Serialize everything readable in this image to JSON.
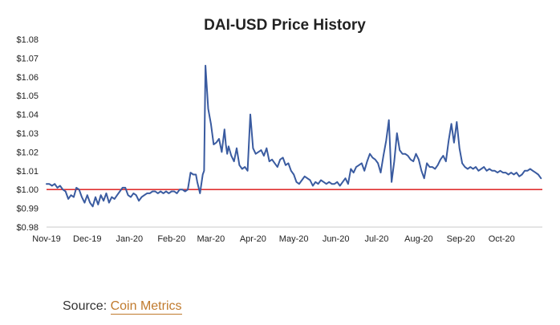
{
  "source": {
    "label": "Source: ",
    "link_text": "Coin Metrics"
  },
  "colors": {
    "series": "#3a5ba0",
    "reference": "#e03131",
    "axis": "#c8c8c8",
    "text": "#222222",
    "link": "#c07a2d"
  },
  "chart_data": {
    "type": "line",
    "title": "DAI-USD Price History",
    "xlabel": "",
    "ylabel": "",
    "ylim": [
      0.98,
      1.08
    ],
    "yticks": [
      0.98,
      0.99,
      1.0,
      1.01,
      1.02,
      1.03,
      1.04,
      1.05,
      1.06,
      1.07,
      1.08
    ],
    "ytick_labels": [
      "$0.98",
      "$0.99",
      "$1.00",
      "$1.01",
      "$1.02",
      "$1.03",
      "$1.04",
      "$1.05",
      "$1.06",
      "$1.07",
      "$1.08"
    ],
    "xlim": [
      "2019-11-01",
      "2020-10-31"
    ],
    "xticks": [
      "2019-11-01",
      "2019-12-01",
      "2020-01-01",
      "2020-02-01",
      "2020-03-01",
      "2020-04-01",
      "2020-05-01",
      "2020-06-01",
      "2020-07-01",
      "2020-08-01",
      "2020-09-01",
      "2020-10-01"
    ],
    "xtick_labels": [
      "Nov-19",
      "Dec-19",
      "Jan-20",
      "Feb-20",
      "Mar-20",
      "Apr-20",
      "May-20",
      "Jun-20",
      "Jul-20",
      "Aug-20",
      "Sep-20",
      "Oct-20"
    ],
    "grid": false,
    "legend": "none",
    "reference_line": {
      "y": 1.0
    },
    "series": [
      {
        "x": [
          "2019-11-01",
          "2019-11-03",
          "2019-11-05",
          "2019-11-07",
          "2019-11-09",
          "2019-11-11",
          "2019-11-13",
          "2019-11-15",
          "2019-11-17",
          "2019-11-19",
          "2019-11-21",
          "2019-11-23",
          "2019-11-25",
          "2019-11-27",
          "2019-11-29",
          "2019-12-01",
          "2019-12-03",
          "2019-12-05",
          "2019-12-07",
          "2019-12-09",
          "2019-12-11",
          "2019-12-13",
          "2019-12-15",
          "2019-12-17",
          "2019-12-19",
          "2019-12-21",
          "2019-12-23",
          "2019-12-25",
          "2019-12-27",
          "2019-12-29",
          "2019-12-31",
          "2020-01-02",
          "2020-01-04",
          "2020-01-06",
          "2020-01-08",
          "2020-01-10",
          "2020-01-12",
          "2020-01-14",
          "2020-01-16",
          "2020-01-18",
          "2020-01-20",
          "2020-01-22",
          "2020-01-24",
          "2020-01-26",
          "2020-01-28",
          "2020-01-30",
          "2020-02-01",
          "2020-02-03",
          "2020-02-05",
          "2020-02-07",
          "2020-02-09",
          "2020-02-11",
          "2020-02-13",
          "2020-02-15",
          "2020-02-17",
          "2020-02-19",
          "2020-02-20",
          "2020-02-21",
          "2020-02-22",
          "2020-02-23",
          "2020-02-24",
          "2020-02-25",
          "2020-02-26",
          "2020-02-28",
          "2020-03-01",
          "2020-03-03",
          "2020-03-05",
          "2020-03-07",
          "2020-03-09",
          "2020-03-11",
          "2020-03-12",
          "2020-03-13",
          "2020-03-14",
          "2020-03-16",
          "2020-03-18",
          "2020-03-20",
          "2020-03-22",
          "2020-03-24",
          "2020-03-26",
          "2020-03-28",
          "2020-03-30",
          "2020-04-01",
          "2020-04-03",
          "2020-04-05",
          "2020-04-07",
          "2020-04-09",
          "2020-04-11",
          "2020-04-13",
          "2020-04-15",
          "2020-04-17",
          "2020-04-19",
          "2020-04-21",
          "2020-04-23",
          "2020-04-25",
          "2020-04-27",
          "2020-04-29",
          "2020-05-01",
          "2020-05-03",
          "2020-05-05",
          "2020-05-07",
          "2020-05-09",
          "2020-05-11",
          "2020-05-13",
          "2020-05-15",
          "2020-05-17",
          "2020-05-19",
          "2020-05-21",
          "2020-05-23",
          "2020-05-25",
          "2020-05-27",
          "2020-05-29",
          "2020-05-31",
          "2020-06-02",
          "2020-06-04",
          "2020-06-06",
          "2020-06-08",
          "2020-06-10",
          "2020-06-12",
          "2020-06-14",
          "2020-06-16",
          "2020-06-18",
          "2020-06-20",
          "2020-06-22",
          "2020-06-24",
          "2020-06-26",
          "2020-06-28",
          "2020-06-30",
          "2020-07-02",
          "2020-07-04",
          "2020-07-06",
          "2020-07-08",
          "2020-07-10",
          "2020-07-12",
          "2020-07-14",
          "2020-07-16",
          "2020-07-18",
          "2020-07-20",
          "2020-07-22",
          "2020-07-24",
          "2020-07-26",
          "2020-07-28",
          "2020-07-30",
          "2020-08-01",
          "2020-08-03",
          "2020-08-05",
          "2020-08-07",
          "2020-08-09",
          "2020-08-11",
          "2020-08-13",
          "2020-08-15",
          "2020-08-17",
          "2020-08-19",
          "2020-08-21",
          "2020-08-23",
          "2020-08-25",
          "2020-08-27",
          "2020-08-29",
          "2020-08-31",
          "2020-09-02",
          "2020-09-04",
          "2020-09-06",
          "2020-09-08",
          "2020-09-10",
          "2020-09-12",
          "2020-09-14",
          "2020-09-16",
          "2020-09-18",
          "2020-09-20",
          "2020-09-22",
          "2020-09-24",
          "2020-09-26",
          "2020-09-28",
          "2020-09-30",
          "2020-10-02",
          "2020-10-04",
          "2020-10-06",
          "2020-10-08",
          "2020-10-10",
          "2020-10-12",
          "2020-10-14",
          "2020-10-16",
          "2020-10-18",
          "2020-10-20",
          "2020-10-22",
          "2020-10-24",
          "2020-10-26",
          "2020-10-28",
          "2020-10-30"
        ],
        "values": [
          1.003,
          1.003,
          1.002,
          1.003,
          1.001,
          1.002,
          1.0,
          0.999,
          0.995,
          0.997,
          0.996,
          1.001,
          1.0,
          0.996,
          0.993,
          0.997,
          0.993,
          0.991,
          0.996,
          0.992,
          0.997,
          0.994,
          0.998,
          0.993,
          0.996,
          0.995,
          0.997,
          0.999,
          1.001,
          1.001,
          0.997,
          0.996,
          0.998,
          0.997,
          0.994,
          0.996,
          0.997,
          0.998,
          0.998,
          0.999,
          0.999,
          0.998,
          0.999,
          0.998,
          0.999,
          0.998,
          0.999,
          0.999,
          0.998,
          1.0,
          1.0,
          0.999,
          1.0,
          1.009,
          1.008,
          1.008,
          1.004,
          1.001,
          0.998,
          1.003,
          1.008,
          1.01,
          1.066,
          1.043,
          1.035,
          1.024,
          1.025,
          1.027,
          1.02,
          1.032,
          1.024,
          1.019,
          1.023,
          1.018,
          1.015,
          1.022,
          1.013,
          1.011,
          1.012,
          1.01,
          1.04,
          1.022,
          1.019,
          1.02,
          1.021,
          1.018,
          1.022,
          1.015,
          1.016,
          1.014,
          1.012,
          1.016,
          1.017,
          1.013,
          1.014,
          1.01,
          1.008,
          1.004,
          1.003,
          1.005,
          1.007,
          1.006,
          1.005,
          1.002,
          1.004,
          1.003,
          1.005,
          1.004,
          1.003,
          1.004,
          1.003,
          1.003,
          1.004,
          1.002,
          1.004,
          1.006,
          1.003,
          1.011,
          1.009,
          1.012,
          1.013,
          1.014,
          1.01,
          1.015,
          1.019,
          1.017,
          1.016,
          1.014,
          1.009,
          1.018,
          1.026,
          1.037,
          1.004,
          1.015,
          1.03,
          1.021,
          1.019,
          1.019,
          1.018,
          1.016,
          1.015,
          1.019,
          1.016,
          1.01,
          1.006,
          1.014,
          1.012,
          1.012,
          1.011,
          1.013,
          1.016,
          1.018,
          1.015,
          1.026,
          1.035,
          1.025,
          1.036,
          1.022,
          1.014,
          1.012,
          1.011,
          1.012,
          1.011,
          1.012,
          1.01,
          1.011,
          1.012,
          1.01,
          1.011,
          1.01,
          1.01,
          1.009,
          1.01,
          1.009,
          1.009,
          1.008,
          1.009,
          1.008,
          1.009,
          1.007,
          1.008,
          1.01,
          1.01,
          1.011,
          1.01,
          1.009,
          1.008,
          1.006
        ]
      }
    ]
  }
}
